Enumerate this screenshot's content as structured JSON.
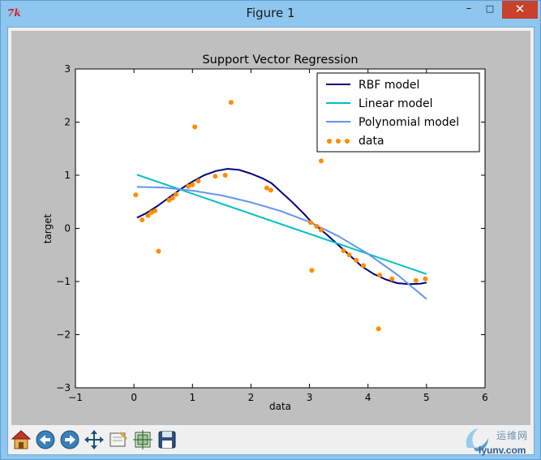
{
  "window": {
    "title": "Figure 1",
    "app_icon": "7k",
    "controls": {
      "minimize": "–",
      "maximize": "□",
      "close": "✕"
    }
  },
  "toolbar": {
    "buttons": [
      {
        "name": "home-button",
        "icon": "home-icon"
      },
      {
        "name": "back-button",
        "icon": "arrow-left-icon"
      },
      {
        "name": "forward-button",
        "icon": "arrow-right-icon"
      },
      {
        "name": "pan-button",
        "icon": "move-arrows-icon"
      },
      {
        "name": "zoom-button",
        "icon": "zoom-rectangle-icon"
      },
      {
        "name": "subplots-button",
        "icon": "subplots-config-icon"
      },
      {
        "name": "save-button",
        "icon": "floppy-disk-icon"
      }
    ]
  },
  "watermark": {
    "cn": "运维网",
    "url": "iyunv.com"
  },
  "chart_data": {
    "type": "line",
    "title": "Support Vector Regression",
    "xlabel": "data",
    "ylabel": "target",
    "xlim": [
      -1,
      6
    ],
    "ylim": [
      -3,
      3
    ],
    "xticks": [
      -1,
      0,
      1,
      2,
      3,
      4,
      5,
      6
    ],
    "yticks": [
      -3,
      -2,
      -1,
      0,
      1,
      2,
      3
    ],
    "tick_labels_x": [
      "−1",
      "0",
      "1",
      "2",
      "3",
      "4",
      "5",
      "6"
    ],
    "tick_labels_y": [
      "−3",
      "−2",
      "−1",
      "0",
      "1",
      "2",
      "3"
    ],
    "grid": false,
    "legend_position": "top-right",
    "colors": {
      "rbf": "#000080",
      "linear": "#00bfbf",
      "poly": "#6495ed",
      "data": "#ff8c00"
    },
    "series": [
      {
        "name": "RBF model",
        "kind": "line",
        "color": "#000080",
        "points": [
          [
            0.05,
            0.2
          ],
          [
            0.2,
            0.28
          ],
          [
            0.4,
            0.42
          ],
          [
            0.6,
            0.58
          ],
          [
            0.8,
            0.74
          ],
          [
            1.0,
            0.88
          ],
          [
            1.2,
            1.0
          ],
          [
            1.4,
            1.08
          ],
          [
            1.6,
            1.12
          ],
          [
            1.8,
            1.1
          ],
          [
            2.0,
            1.03
          ],
          [
            2.2,
            0.94
          ],
          [
            2.35,
            0.85
          ],
          [
            2.5,
            0.7
          ],
          [
            2.7,
            0.5
          ],
          [
            2.9,
            0.28
          ],
          [
            3.05,
            0.1
          ],
          [
            3.3,
            -0.12
          ],
          [
            3.5,
            -0.32
          ],
          [
            3.7,
            -0.52
          ],
          [
            3.9,
            -0.72
          ],
          [
            4.1,
            -0.86
          ],
          [
            4.3,
            -0.96
          ],
          [
            4.5,
            -1.03
          ],
          [
            4.7,
            -1.05
          ],
          [
            4.9,
            -1.04
          ],
          [
            5.0,
            -1.02
          ]
        ]
      },
      {
        "name": "Linear model",
        "kind": "line",
        "color": "#00bfbf",
        "points": [
          [
            0.05,
            1.01
          ],
          [
            5.0,
            -0.86
          ]
        ]
      },
      {
        "name": "Polynomial model",
        "kind": "line",
        "color": "#6495ed",
        "points": [
          [
            0.05,
            0.78
          ],
          [
            0.5,
            0.77
          ],
          [
            1.0,
            0.71
          ],
          [
            1.5,
            0.62
          ],
          [
            2.0,
            0.49
          ],
          [
            2.5,
            0.33
          ],
          [
            3.0,
            0.12
          ],
          [
            3.5,
            -0.15
          ],
          [
            4.0,
            -0.48
          ],
          [
            4.5,
            -0.87
          ],
          [
            5.0,
            -1.33
          ]
        ]
      },
      {
        "name": "data",
        "kind": "scatter",
        "color": "#ff8c00",
        "points": [
          [
            0.03,
            0.63
          ],
          [
            0.14,
            0.16
          ],
          [
            0.24,
            0.24
          ],
          [
            0.3,
            0.3
          ],
          [
            0.36,
            0.33
          ],
          [
            0.42,
            -0.43
          ],
          [
            0.6,
            0.53
          ],
          [
            0.66,
            0.57
          ],
          [
            0.72,
            0.64
          ],
          [
            0.93,
            0.79
          ],
          [
            1.0,
            0.82
          ],
          [
            1.04,
            1.91
          ],
          [
            1.1,
            0.89
          ],
          [
            1.39,
            0.98
          ],
          [
            1.56,
            1.0
          ],
          [
            1.66,
            2.37
          ],
          [
            2.27,
            0.76
          ],
          [
            2.34,
            0.72
          ],
          [
            3.02,
            0.11
          ],
          [
            3.04,
            -0.79
          ],
          [
            3.12,
            0.04
          ],
          [
            3.2,
            -0.03
          ],
          [
            3.2,
            1.27
          ],
          [
            3.58,
            -0.42
          ],
          [
            3.68,
            -0.5
          ],
          [
            3.8,
            -0.6
          ],
          [
            3.92,
            -0.7
          ],
          [
            4.18,
            -1.89
          ],
          [
            4.2,
            -0.88
          ],
          [
            4.41,
            -0.95
          ],
          [
            4.82,
            -0.98
          ],
          [
            4.98,
            -0.95
          ]
        ]
      }
    ]
  }
}
